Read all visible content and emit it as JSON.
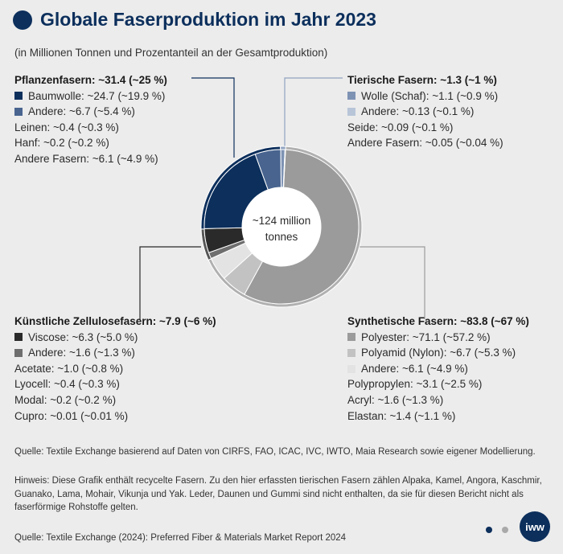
{
  "title": "Globale Faserproduktion im Jahr 2023",
  "subtitle": "(in Millionen Tonnen und Prozentanteil an der Gesamtproduktion)",
  "center_label": [
    "~124 million",
    "tonnes"
  ],
  "groups": {
    "plant": {
      "head": "Pflanzenfasern: ~31.4 (~25 %)",
      "items": [
        {
          "label": "Baumwolle: ~24.7 (~19.9 %)",
          "color": "#0c2f5c",
          "swatch": true
        },
        {
          "label": "Andere: ~6.7 (~5.4 %)",
          "color": "#48648f",
          "swatch": true
        },
        {
          "label": "Leinen: ~0.4 (~0.3 %)",
          "swatch": false
        },
        {
          "label": "Hanf: ~0.2 (~0.2 %)",
          "swatch": false
        },
        {
          "label": "Andere Fasern: ~6.1 (~4.9 %)",
          "swatch": false
        }
      ]
    },
    "animal": {
      "head": "Tierische Fasern: ~1.3 (~1 %)",
      "items": [
        {
          "label": "Wolle (Schaf): ~1.1 (~0.9 %)",
          "color": "#7e93b4",
          "swatch": true
        },
        {
          "label": "Andere: ~0.13 (~0.1 %)",
          "color": "#b8c5d8",
          "swatch": true
        },
        {
          "label": "Seide: ~0.09 (~0.1 %)",
          "swatch": false
        },
        {
          "label": "Andere Fasern: ~0.05 (~0.04 %)",
          "swatch": false
        }
      ]
    },
    "cellulose": {
      "head": "Künstliche Zellulosefasern: ~7.9 (~6 %)",
      "items": [
        {
          "label": "Viscose: ~6.3 (~5.0 %)",
          "color": "#2a2a2a",
          "swatch": true
        },
        {
          "label": "Andere: ~1.6 (~1.3 %)",
          "color": "#6e6e6e",
          "swatch": true
        },
        {
          "label": "Acetate: ~1.0 (~0.8 %)",
          "swatch": false
        },
        {
          "label": "Lyocell: ~0.4 (~0.3 %)",
          "swatch": false
        },
        {
          "label": "Modal: ~0.2 (~0.2 %)",
          "swatch": false
        },
        {
          "label": "Cupro: ~0.01 (~0.01 %)",
          "swatch": false
        }
      ]
    },
    "synthetic": {
      "head": "Synthetische Fasern: ~83.8 (~67 %)",
      "items": [
        {
          "label": "Polyester: ~71.1 (~57.2 %)",
          "color": "#9b9b9b",
          "swatch": true
        },
        {
          "label": "Polyamid (Nylon): ~6.7 (~5.3 %)",
          "color": "#c2c2c2",
          "swatch": true
        },
        {
          "label": "Andere: ~6.1 (~4.9 %)",
          "color": "#e3e3e3",
          "swatch": true
        },
        {
          "label": "Polypropylen: ~3.1 (~2.5 %)",
          "swatch": false
        },
        {
          "label": "Acryl: ~1.6 (~1.3 %)",
          "swatch": false
        },
        {
          "label": "Elastan: ~1.4 (~1.1 %)",
          "swatch": false
        }
      ]
    }
  },
  "notes": {
    "source1": "Quelle: Textile Exchange basierend auf Daten von CIRFS, FAO, ICAC, IVC, IWTO, Maia Research sowie eigener Modellierung.",
    "hint": "Hinweis: Diese Grafik enthält recycelte Fasern. Zu den hier erfassten tierischen Fasern zählen Alpaka, Kamel, Angora, Kaschmir, Guanako, Lama, Mohair, Vikunja und Yak. Leder, Daunen und Gummi sind nicht enthalten, da sie für diesen Bericht nicht als faserförmige Rohstoffe gelten.",
    "source2": "Quelle: Textile Exchange (2024): Preferred Fiber & Materials Market Report 2024"
  },
  "logo_text": "iww",
  "footer_dot_colors": [
    "#0c2f5c",
    "#a9a9a9"
  ],
  "chart_data": {
    "type": "pie",
    "donut": true,
    "unit": "Millionen Tonnen",
    "total": 124,
    "outer_ring": [
      {
        "category": "Synthetische Fasern",
        "value": 83.8,
        "percent": 67,
        "color": "#b0b0b0"
      },
      {
        "category": "Künstliche Zellulosefasern",
        "value": 7.9,
        "percent": 6,
        "color": "#555555"
      },
      {
        "category": "Pflanzenfasern",
        "value": 31.4,
        "percent": 25,
        "color": "#0c2f5c"
      },
      {
        "category": "Tierische Fasern",
        "value": 1.3,
        "percent": 1,
        "color": "#8fa2c0"
      }
    ],
    "inner_ring": [
      {
        "label": "Polyester",
        "value": 71.1,
        "color": "#9b9b9b"
      },
      {
        "label": "Polyamid (Nylon)",
        "value": 6.7,
        "color": "#c2c2c2"
      },
      {
        "label": "Andere (Synthetisch)",
        "value": 6.1,
        "color": "#e3e3e3"
      },
      {
        "label": "Andere (Zellulose)",
        "value": 1.6,
        "color": "#6e6e6e"
      },
      {
        "label": "Viscose",
        "value": 6.3,
        "color": "#2a2a2a"
      },
      {
        "label": "Baumwolle",
        "value": 24.7,
        "color": "#0c2f5c"
      },
      {
        "label": "Andere (Pflanzen)",
        "value": 6.7,
        "color": "#48648f"
      },
      {
        "label": "Wolle (Schaf)",
        "value": 1.1,
        "color": "#7e93b4"
      },
      {
        "label": "Andere (Tierisch)",
        "value": 0.13,
        "color": "#b8c5d8"
      }
    ]
  }
}
